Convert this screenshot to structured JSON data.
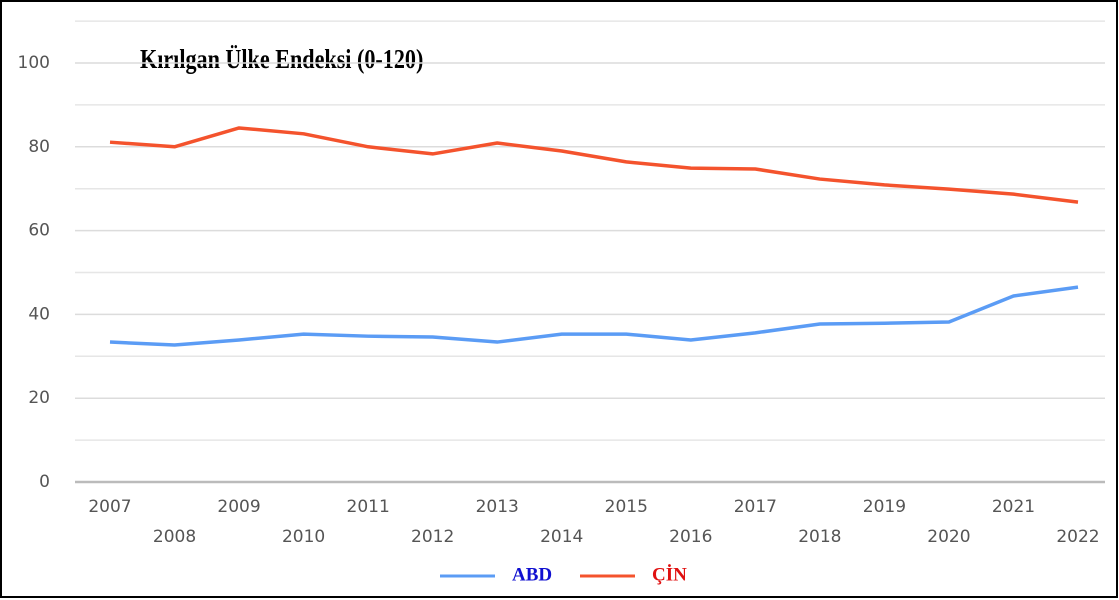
{
  "chart_data": {
    "type": "line",
    "title": "Kırılgan Ülke Endeksi (0-120)",
    "categories": [
      "2007",
      "2008",
      "2009",
      "2010",
      "2011",
      "2012",
      "2013",
      "2014",
      "2015",
      "2016",
      "2017",
      "2018",
      "2019",
      "2020",
      "2021",
      "2022"
    ],
    "series": [
      {
        "name": "ABD",
        "color": "#5b9cf5",
        "values": [
          33.4,
          32.7,
          33.9,
          35.3,
          34.8,
          34.6,
          33.4,
          35.3,
          35.3,
          33.9,
          35.6,
          37.7,
          37.9,
          38.2,
          44.4,
          46.5
        ]
      },
      {
        "name": "ÇİN",
        "color": "#f4532d",
        "values": [
          81.1,
          80.0,
          84.5,
          83.1,
          80.0,
          78.3,
          80.9,
          79.0,
          76.4,
          74.9,
          74.7,
          72.3,
          70.9,
          69.9,
          68.7,
          66.8
        ]
      }
    ],
    "legend_colors": [
      "#1010d0",
      "#e01010"
    ],
    "ylim": [
      0,
      110
    ],
    "yticks": [
      0,
      20,
      40,
      60,
      80,
      100
    ],
    "yminor": [
      10,
      30,
      50,
      70,
      90,
      110
    ],
    "grid": true,
    "legend": "bottom"
  }
}
